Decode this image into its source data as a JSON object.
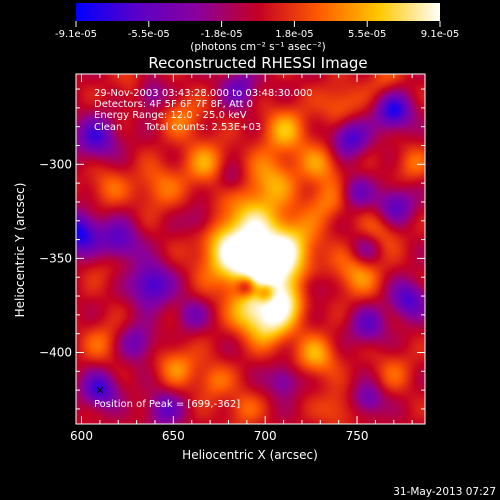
{
  "chart_data": {
    "type": "heatmap",
    "title": "Reconstructed RHESSI Image",
    "xlabel": "Heliocentric X (arcsec)",
    "ylabel": "Heliocentric Y (arcsec)",
    "xlim": [
      597,
      787
    ],
    "ylim": [
      -438,
      -252
    ],
    "x_ticks": [
      600,
      650,
      700,
      750
    ],
    "y_ticks": [
      -300,
      -350,
      -400
    ],
    "colorbar": {
      "min": -9.1e-05,
      "max": 9.1e-05,
      "tick_labels": [
        "-9.1e-05",
        "-5.5e-05",
        "-1.8e-05",
        "1.8e-05",
        "5.5e-05",
        "9.1e-05"
      ],
      "units": "(photons cm⁻² s⁻¹ asec⁻²)",
      "colormap": [
        "#0000ff",
        "#5a00c8",
        "#8a009c",
        "#c40024",
        "#ff5a00",
        "#ffc800",
        "#ffffff"
      ]
    },
    "annotations": {
      "time_range": "29-Nov-2003 03:43:28.000 to 03:48:30.000",
      "detectors": "Detectors: 4F 5F 6F 7F 8F, Att 0",
      "energy": "Energy Range: 12.0 - 25.0 keV",
      "algorithm": "Clean",
      "counts": "Total counts: 2.53E+03",
      "peak": "Position of Peak = [699,-362]"
    },
    "peak": [
      699,
      -362
    ],
    "sources": [
      {
        "x": 700,
        "y": -358,
        "v": 9e-05,
        "s": 13
      },
      {
        "x": 680,
        "y": -347,
        "v": 6.5e-05,
        "s": 12
      },
      {
        "x": 714,
        "y": -343,
        "v": 5.5e-05,
        "s": 11
      },
      {
        "x": 692,
        "y": -330,
        "v": 5e-05,
        "s": 12
      },
      {
        "x": 703,
        "y": -308,
        "v": 4.5e-05,
        "s": 10
      },
      {
        "x": 711,
        "y": -282,
        "v": 5e-05,
        "s": 9
      },
      {
        "x": 730,
        "y": -300,
        "v": 4e-05,
        "s": 8
      },
      {
        "x": 741,
        "y": -268,
        "v": 3.5e-05,
        "s": 8
      },
      {
        "x": 668,
        "y": -300,
        "v": 4.5e-05,
        "s": 9
      },
      {
        "x": 655,
        "y": -275,
        "v": 3.5e-05,
        "s": 8
      },
      {
        "x": 642,
        "y": -312,
        "v": 3.5e-05,
        "s": 9
      },
      {
        "x": 710,
        "y": -374,
        "v": 5.5e-05,
        "s": 9
      },
      {
        "x": 692,
        "y": -380,
        "v": 5e-05,
        "s": 8
      },
      {
        "x": 703,
        "y": -388,
        "v": 4.5e-05,
        "s": 8
      },
      {
        "x": 750,
        "y": -358,
        "v": 4.5e-05,
        "s": 9
      },
      {
        "x": 728,
        "y": -402,
        "v": 5e-05,
        "s": 8
      },
      {
        "x": 652,
        "y": -407,
        "v": 4e-05,
        "s": 8
      },
      {
        "x": 672,
        "y": -415,
        "v": 3.5e-05,
        "s": 7
      },
      {
        "x": 612,
        "y": -395,
        "v": 3e-05,
        "s": 8
      },
      {
        "x": 614,
        "y": -312,
        "v": 3e-05,
        "s": 8
      },
      {
        "x": 733,
        "y": -320,
        "v": 3.5e-05,
        "s": 8
      },
      {
        "x": 763,
        "y": -336,
        "v": 3e-05,
        "s": 8
      },
      {
        "x": 614,
        "y": -350,
        "v": 2.5e-05,
        "s": 9
      },
      {
        "x": 688,
        "y": -430,
        "v": 3e-05,
        "s": 7
      },
      {
        "x": 739,
        "y": -430,
        "v": 3e-05,
        "s": 7
      },
      {
        "x": 770,
        "y": -410,
        "v": 2.5e-05,
        "s": 8
      },
      {
        "x": 780,
        "y": -300,
        "v": 3e-05,
        "s": 7
      },
      {
        "x": 630,
        "y": -260,
        "v": 2.5e-05,
        "s": 8
      },
      {
        "x": 765,
        "y": -255,
        "v": 2.5e-05,
        "s": 7
      },
      {
        "x": 599,
        "y": -337,
        "v": -8.5e-05,
        "s": 8
      },
      {
        "x": 620,
        "y": -342,
        "v": -7e-05,
        "s": 8
      },
      {
        "x": 608,
        "y": -286,
        "v": -6.5e-05,
        "s": 8
      },
      {
        "x": 638,
        "y": -364,
        "v": -7.5e-05,
        "s": 8
      },
      {
        "x": 746,
        "y": -286,
        "v": -7e-05,
        "s": 7
      },
      {
        "x": 770,
        "y": -272,
        "v": -8e-05,
        "s": 7
      },
      {
        "x": 771,
        "y": -322,
        "v": -6e-05,
        "s": 7
      },
      {
        "x": 778,
        "y": -372,
        "v": -6.5e-05,
        "s": 7
      },
      {
        "x": 756,
        "y": -386,
        "v": -5e-05,
        "s": 7
      },
      {
        "x": 630,
        "y": -395,
        "v": -5e-05,
        "s": 7
      },
      {
        "x": 610,
        "y": -420,
        "v": -7e-05,
        "s": 7
      },
      {
        "x": 645,
        "y": -430,
        "v": -5e-05,
        "s": 7
      },
      {
        "x": 710,
        "y": -415,
        "v": -4.5e-05,
        "s": 6
      },
      {
        "x": 756,
        "y": -425,
        "v": -5e-05,
        "s": 6
      },
      {
        "x": 637,
        "y": -263,
        "v": -5.5e-05,
        "s": 6
      },
      {
        "x": 686,
        "y": -260,
        "v": -5e-05,
        "s": 7
      },
      {
        "x": 681,
        "y": -308,
        "v": -3.5e-05,
        "s": 6
      },
      {
        "x": 700,
        "y": -368,
        "v": -6e-05,
        "s": 4
      },
      {
        "x": 690,
        "y": -365,
        "v": -7e-05,
        "s": 4
      },
      {
        "x": 750,
        "y": -315,
        "v": -4.5e-05,
        "s": 6
      },
      {
        "x": 755,
        "y": -345,
        "v": -4e-05,
        "s": 6
      },
      {
        "x": 660,
        "y": -380,
        "v": -4e-05,
        "s": 6
      },
      {
        "x": 665,
        "y": -330,
        "v": -3.5e-05,
        "s": 6
      },
      {
        "x": 725,
        "y": -365,
        "v": -3.5e-05,
        "s": 6
      }
    ],
    "marker": {
      "x": 610,
      "y": -420,
      "symbol": "×"
    }
  },
  "footer_timestamp": "31-May-2013 07:27"
}
